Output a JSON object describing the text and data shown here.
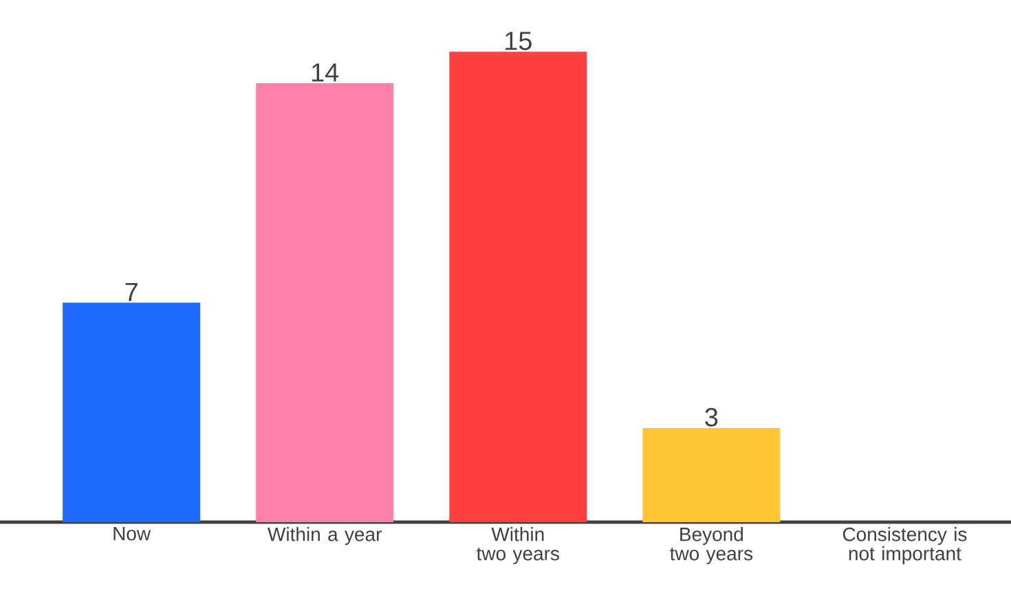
{
  "chart_data": {
    "type": "bar",
    "categories": [
      "Now",
      "Within a year",
      "Within two years",
      "Beyond two years",
      "Consistency is not important"
    ],
    "values": [
      7,
      14,
      15,
      3,
      0
    ],
    "colors": [
      "#1f6bff",
      "#ff80aa",
      "#ff4040",
      "#ffc533",
      null
    ],
    "value_labels": [
      "7",
      "14",
      "15",
      "3",
      null
    ]
  }
}
